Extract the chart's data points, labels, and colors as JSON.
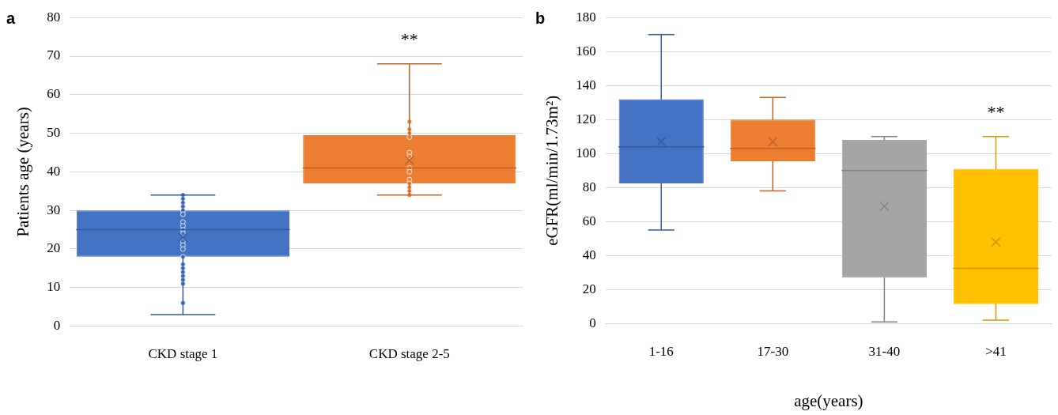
{
  "chart_data": [
    {
      "type": "box",
      "title": "a",
      "ylabel": "Patients age (years)",
      "categories": [
        "CKD stage 1",
        "CKD stage 2-5"
      ],
      "ylim": [
        0,
        80
      ],
      "yticks": [
        0,
        10,
        20,
        30,
        40,
        50,
        60,
        70,
        80
      ],
      "grid": "y",
      "annotations": [
        "**"
      ],
      "series": [
        {
          "type": "box",
          "colors": [
            "#4472c4",
            "#ed7d31"
          ],
          "boxes": [
            {
              "low": 3,
              "q1": 18,
              "median": 25,
              "q3": 30,
              "high": 34,
              "mean": 23
            },
            {
              "low": 34,
              "q1": 37,
              "median": 41,
              "q3": 49.5,
              "high": 68,
              "mean": 43
            }
          ]
        },
        {
          "type": "scatter",
          "marker": "circle",
          "x": [
            "CKD stage 1",
            "CKD stage 1",
            "CKD stage 1",
            "CKD stage 1",
            "CKD stage 1",
            "CKD stage 1",
            "CKD stage 1",
            "CKD stage 1",
            "CKD stage 1",
            "CKD stage 1",
            "CKD stage 1",
            "CKD stage 1",
            "CKD stage 1",
            "CKD stage 1",
            "CKD stage 1",
            "CKD stage 1",
            "CKD stage 1",
            "CKD stage 1",
            "CKD stage 1",
            "CKD stage 1",
            "CKD stage 1",
            "CKD stage 2-5",
            "CKD stage 2-5",
            "CKD stage 2-5",
            "CKD stage 2-5",
            "CKD stage 2-5",
            "CKD stage 2-5",
            "CKD stage 2-5",
            "CKD stage 2-5",
            "CKD stage 2-5",
            "CKD stage 2-5",
            "CKD stage 2-5",
            "CKD stage 2-5",
            "CKD stage 2-5"
          ],
          "values": [
            34,
            33,
            32,
            31,
            30,
            29,
            27,
            26,
            25,
            24,
            22,
            21,
            20,
            18,
            16,
            15,
            14,
            13,
            12,
            11,
            6,
            53,
            51,
            50,
            49,
            45,
            44,
            41,
            40,
            38,
            37,
            36,
            35,
            34
          ],
          "colors": [
            "#4472c4",
            "#4472c4",
            "#4472c4",
            "#4472c4",
            "#4472c4",
            "#4472c4",
            "#4472c4",
            "#4472c4",
            "#4472c4",
            "#4472c4",
            "#4472c4",
            "#4472c4",
            "#4472c4",
            "#4472c4",
            "#4472c4",
            "#4472c4",
            "#4472c4",
            "#4472c4",
            "#4472c4",
            "#4472c4",
            "#4472c4",
            "#ed7d31",
            "#ed7d31",
            "#ed7d31",
            "#ed7d31",
            "#ed7d31",
            "#ed7d31",
            "#ed7d31",
            "#ed7d31",
            "#ed7d31",
            "#ed7d31",
            "#ed7d31",
            "#ed7d31",
            "#ed7d31"
          ]
        }
      ]
    },
    {
      "type": "box",
      "title": "b",
      "ylabel": "eGFR(ml/min/1.73m²)",
      "xlabel": "age(years)",
      "categories": [
        "1-16",
        "17-30",
        "31-40",
        ">41"
      ],
      "ylim": [
        0,
        180
      ],
      "yticks": [
        0,
        20,
        40,
        60,
        80,
        100,
        120,
        140,
        160,
        180
      ],
      "grid": "y",
      "annotations": [
        "**"
      ],
      "series": [
        {
          "type": "box",
          "colors": [
            "#4472c4",
            "#ed7d31",
            "#a5a5a5",
            "#ffc000"
          ],
          "boxes": [
            {
              "low": 55,
              "q1": 82.5,
              "median": 104,
              "q3": 132,
              "high": 170,
              "mean": 107
            },
            {
              "low": 78,
              "q1": 95.5,
              "median": 103,
              "q3": 120,
              "high": 133,
              "mean": 107
            },
            {
              "low": 1,
              "q1": 27,
              "median": 90,
              "q3": 108,
              "high": 110,
              "mean": 69
            },
            {
              "low": 2,
              "q1": 11.5,
              "median": 32.5,
              "q3": 91,
              "high": 110,
              "mean": 48
            }
          ]
        }
      ]
    }
  ]
}
